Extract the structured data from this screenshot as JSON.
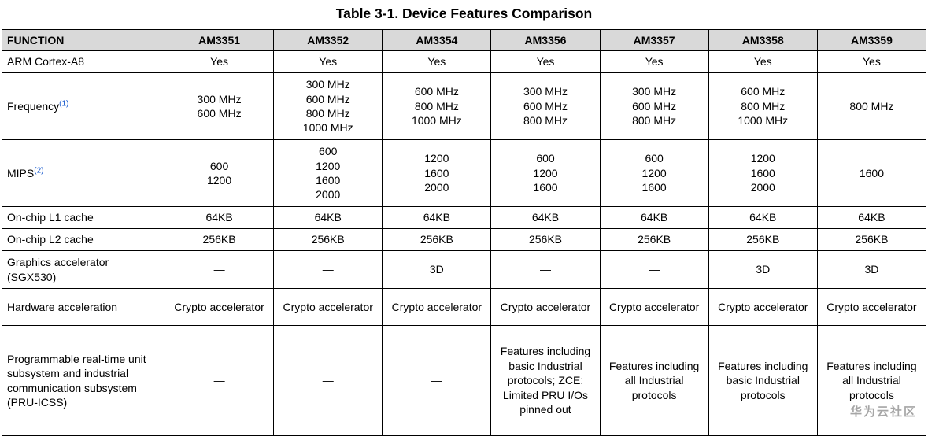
{
  "title": "Table 3-1. Device Features Comparison",
  "watermark": "华为云社区",
  "colors": {
    "link": "#1155cc",
    "header_bg": "#d9d9d9",
    "watermark": "#a6a6a6"
  },
  "table": {
    "columns": [
      "FUNCTION",
      "AM3351",
      "AM3352",
      "AM3354",
      "AM3356",
      "AM3357",
      "AM3358",
      "AM3359"
    ],
    "rows": [
      {
        "function": "ARM Cortex-A8",
        "sup": "",
        "values": [
          "Yes",
          "Yes",
          "Yes",
          "Yes",
          "Yes",
          "Yes",
          "Yes"
        ]
      },
      {
        "function": "Frequency",
        "sup": "(1)",
        "values": [
          "300 MHz\n600 MHz",
          "300 MHz\n600 MHz\n800 MHz\n1000 MHz",
          "600 MHz\n800 MHz\n1000 MHz",
          "300 MHz\n600 MHz\n800 MHz",
          "300 MHz\n600 MHz\n800 MHz",
          "600 MHz\n800 MHz\n1000 MHz",
          "800 MHz"
        ]
      },
      {
        "function": "MIPS",
        "sup": "(2)",
        "values": [
          "600\n1200",
          "600\n1200\n1600\n2000",
          "1200\n1600\n2000",
          "600\n1200\n1600",
          "600\n1200\n1600",
          "1200\n1600\n2000",
          "1600"
        ]
      },
      {
        "function": "On-chip L1 cache",
        "sup": "",
        "values": [
          "64KB",
          "64KB",
          "64KB",
          "64KB",
          "64KB",
          "64KB",
          "64KB"
        ]
      },
      {
        "function": "On-chip L2 cache",
        "sup": "",
        "values": [
          "256KB",
          "256KB",
          "256KB",
          "256KB",
          "256KB",
          "256KB",
          "256KB"
        ]
      },
      {
        "function": "Graphics accelerator (SGX530)",
        "sup": "",
        "values": [
          "—",
          "—",
          "3D",
          "—",
          "—",
          "3D",
          "3D"
        ]
      },
      {
        "function": "Hardware acceleration",
        "sup": "",
        "values": [
          "Crypto accelerator",
          "Crypto accelerator",
          "Crypto accelerator",
          "Crypto accelerator",
          "Crypto accelerator",
          "Crypto accelerator",
          "Crypto accelerator"
        ]
      },
      {
        "function": "Programmable real-time unit subsystem and industrial communication subsystem (PRU-ICSS)",
        "sup": "",
        "values": [
          "—",
          "—",
          "—",
          "Features including basic Industrial protocols; ZCE: Limited PRU I/Os pinned out",
          "Features including all Industrial protocols",
          "Features including basic Industrial protocols",
          "Features including all Industrial protocols"
        ]
      }
    ]
  }
}
